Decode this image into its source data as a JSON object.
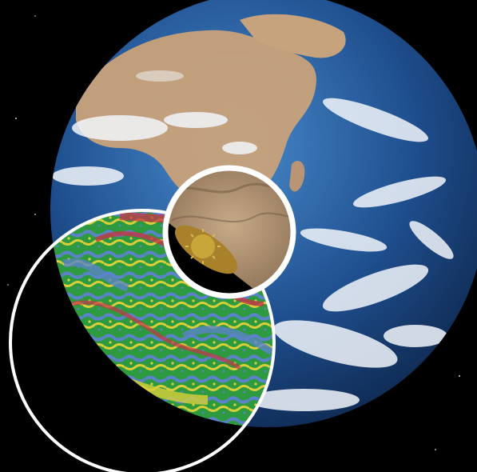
{
  "scene": {
    "subject": "earth-globe-from-space",
    "insets": [
      "thematic-map-inset",
      "satellite-terrain-inset",
      "pollen-grain-inset"
    ],
    "colors": {
      "space": "#000000",
      "ocean": "#1f4f8f",
      "ocean_light": "#3f7fc0",
      "land": "#c9a27a",
      "cloud": "#f2f6fb",
      "ring": "#ffffff",
      "map_green": "#2e9a3f",
      "map_blue": "#5b83c9",
      "map_yellow": "#d8cf3a",
      "map_red": "#c8344a",
      "terrain": "#b39674",
      "pollen": "#c9a63a"
    }
  }
}
